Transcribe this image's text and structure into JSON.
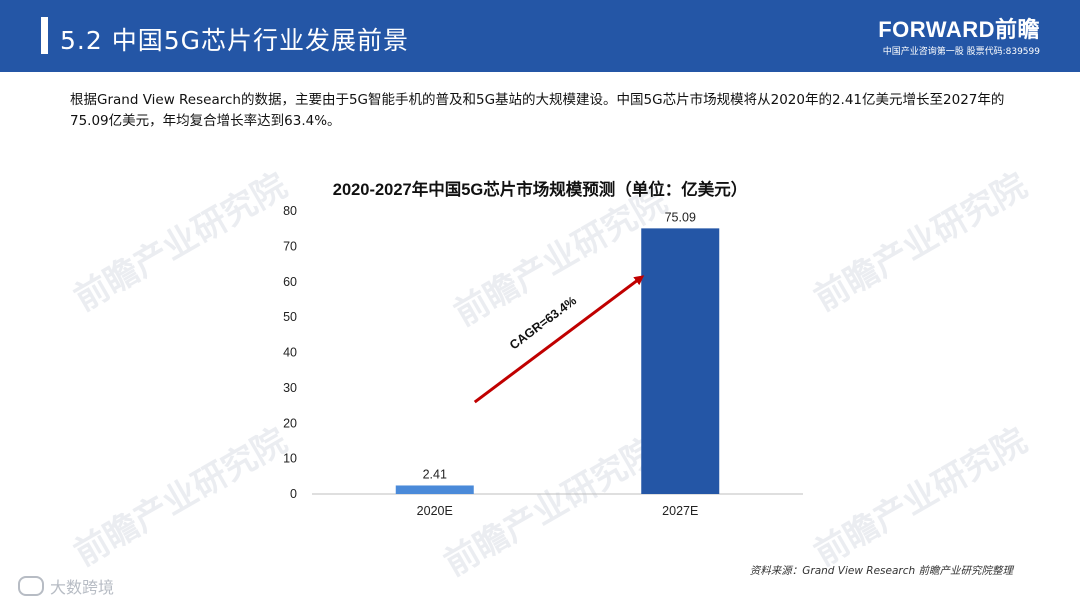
{
  "header": {
    "title": "5.2 中国5G芯片行业发展前景",
    "brand": "FORWARD前瞻",
    "brand_sub": "中国产业咨询第一股 股票代码:839599"
  },
  "intro": "根据Grand View Research的数据，主要由于5G智能手机的普及和5G基站的大规模建设。中国5G芯片市场规模将从2020年的2.41亿美元增长至2027年的75.09亿美元，年均复合增长率达到63.4%。",
  "chart_data": {
    "type": "bar",
    "title": "2020-2027年中国5G芯片市场规模预测（单位：亿美元）",
    "categories": [
      "2020E",
      "2027E"
    ],
    "values": [
      2.41,
      75.09
    ],
    "value_labels": [
      "2.41",
      "75.09"
    ],
    "ylim": [
      0,
      80
    ],
    "yticks": [
      0,
      10,
      20,
      30,
      40,
      50,
      60,
      70,
      80
    ],
    "grid": false,
    "bar_color": "#2456a6",
    "highlight_color": "#4a8ad9",
    "annotation": "CAGR=63.4%",
    "annotation_color": "#c00000"
  },
  "watermark": "前瞻产业研究院",
  "source": "资料来源：Grand View Research 前瞻产业研究院整理",
  "corner_label": "大数跨境"
}
